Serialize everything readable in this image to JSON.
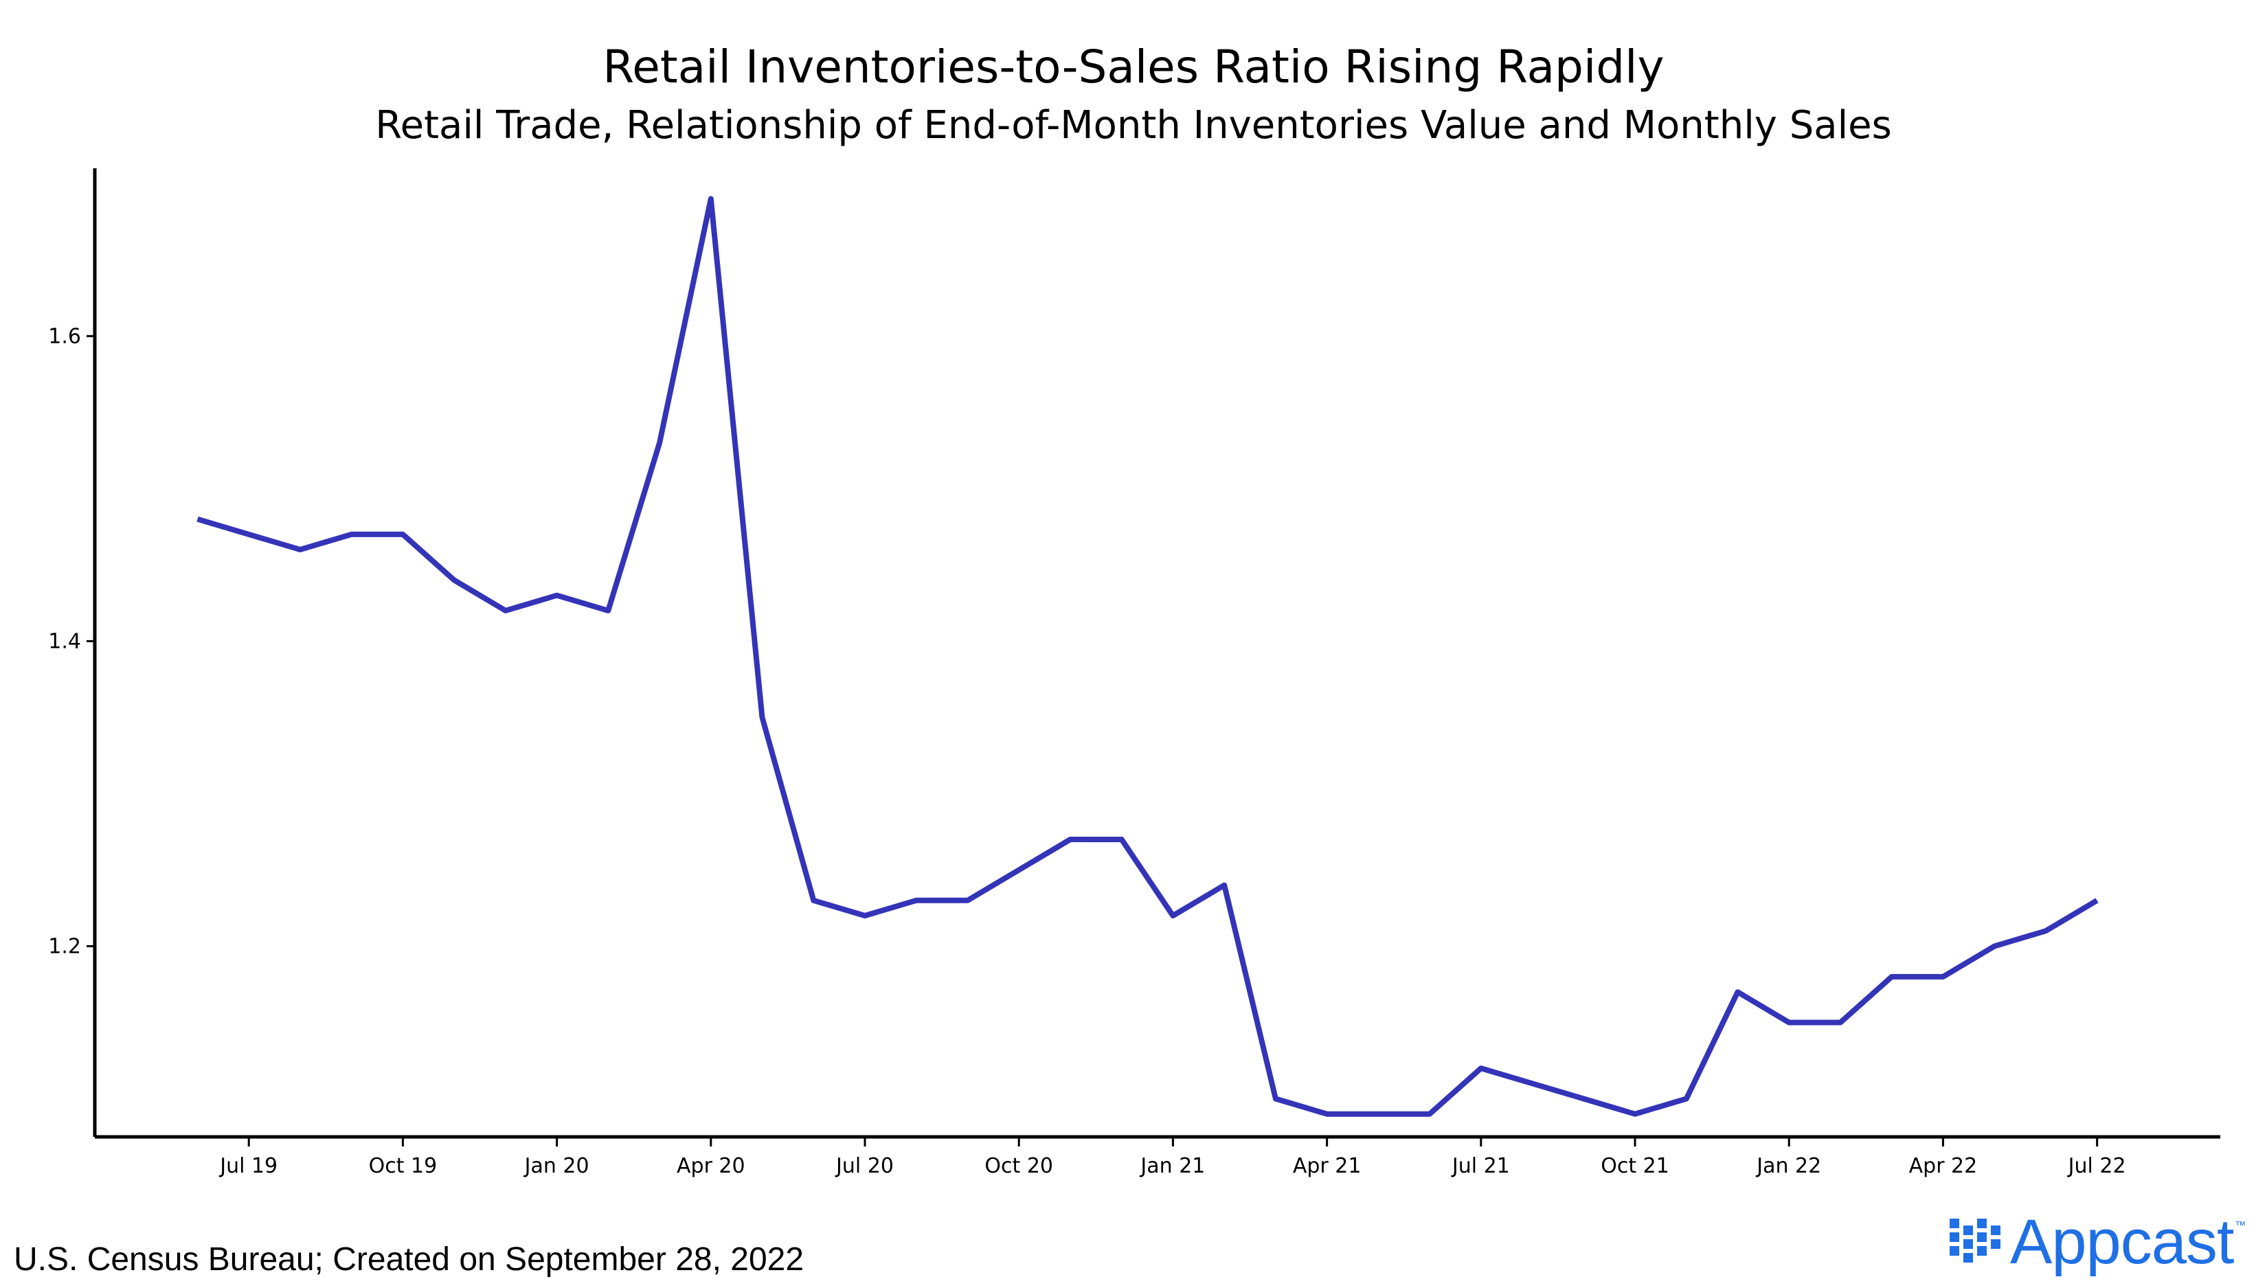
{
  "chart_data": {
    "type": "line",
    "title": "Retail Inventories-to-Sales Ratio Rising Rapidly",
    "subtitle": "Retail Trade, Relationship of End-of-Month Inventories Value and Monthly Sales",
    "xlabel": "",
    "ylabel": "",
    "x": [
      "Jun 19",
      "Jul 19",
      "Aug 19",
      "Sep 19",
      "Oct 19",
      "Nov 19",
      "Dec 19",
      "Jan 20",
      "Feb 20",
      "Mar 20",
      "Apr 20",
      "May 20",
      "Jun 20",
      "Jul 20",
      "Aug 20",
      "Sep 20",
      "Oct 20",
      "Nov 20",
      "Dec 20",
      "Jan 21",
      "Feb 21",
      "Mar 21",
      "Apr 21",
      "May 21",
      "Jun 21",
      "Jul 21",
      "Aug 21",
      "Sep 21",
      "Oct 21",
      "Nov 21",
      "Dec 21",
      "Jan 22",
      "Feb 22",
      "Mar 22",
      "Apr 22",
      "May 22",
      "Jun 22",
      "Jul 22"
    ],
    "series": [
      {
        "name": "Inventories-to-Sales Ratio",
        "color": "#3434b8",
        "values": [
          1.48,
          1.47,
          1.46,
          1.47,
          1.47,
          1.44,
          1.42,
          1.43,
          1.42,
          1.53,
          1.69,
          1.35,
          1.23,
          1.22,
          1.23,
          1.23,
          1.25,
          1.27,
          1.27,
          1.22,
          1.24,
          1.1,
          1.09,
          1.09,
          1.09,
          1.12,
          1.11,
          1.1,
          1.09,
          1.1,
          1.17,
          1.15,
          1.15,
          1.18,
          1.18,
          1.2,
          1.21,
          1.23
        ]
      }
    ],
    "x_ticks": [
      "Jul 19",
      "Oct 19",
      "Jan 20",
      "Apr 20",
      "Jul 20",
      "Oct 20",
      "Jan 21",
      "Apr 21",
      "Jul 21",
      "Oct 21",
      "Jan 22",
      "Apr 22",
      "Jul 22"
    ],
    "y_ticks": [
      1.2,
      1.4,
      1.6
    ],
    "y_tick_labels": [
      "1.2",
      "1.4",
      "1.6"
    ],
    "ylim": [
      1.075,
      1.71
    ],
    "xlim_months": [
      -2.0,
      39.4
    ],
    "grid": false,
    "legend": "none"
  },
  "footer": {
    "source": "U.S. Census Bureau; Created on September 28, 2022",
    "logo_text": "Appcast",
    "logo_tm": "™",
    "logo_color": "#1f6fe5"
  }
}
